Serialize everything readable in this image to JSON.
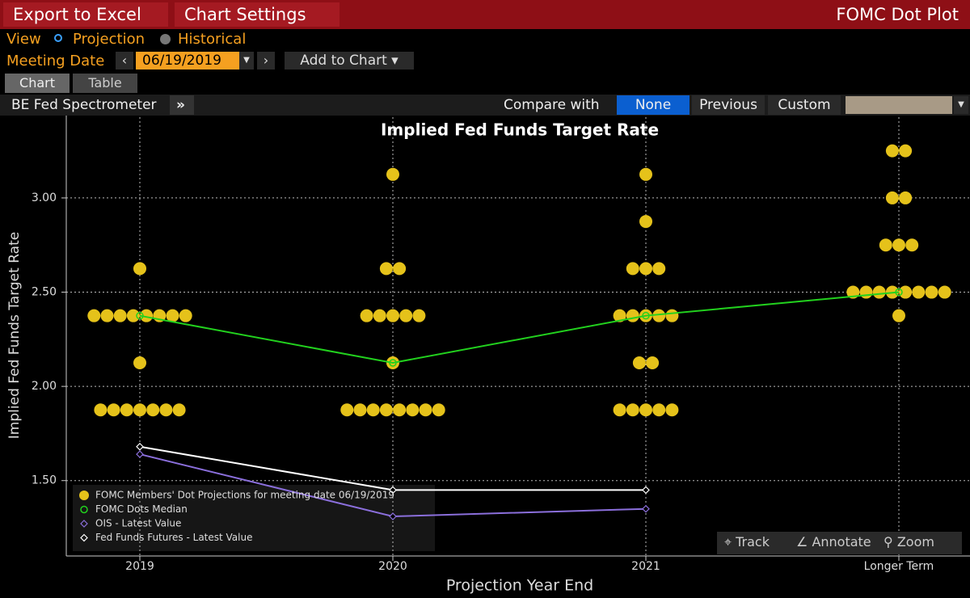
{
  "ui": {
    "toolbar": {
      "export": "Export to Excel",
      "settings": "Chart Settings",
      "title": "FOMC Dot Plot"
    },
    "view": {
      "label": "View",
      "options": [
        "Projection",
        "Historical"
      ]
    },
    "meeting_date": {
      "label": "Meeting Date",
      "value": "06/19/2019",
      "add": "Add to Chart"
    },
    "tabs": [
      "Chart",
      "Table"
    ],
    "subbar": {
      "source": "BE Fed Spectrometer",
      "expand": "»",
      "compare_label": "Compare with",
      "compare_options": [
        "None",
        "Previous",
        "Custom"
      ]
    },
    "chart_tools": [
      "Track",
      "Annotate",
      "Zoom"
    ]
  },
  "chart_data": {
    "type": "dot_plot",
    "title": "Implied Fed Funds Target Rate",
    "x_label": "Projection Year End",
    "y_label": "Implied Fed Funds Target Rate",
    "categories": [
      "2019",
      "2020",
      "2021",
      "Longer Term"
    ],
    "ylim": [
      1.1,
      3.45
    ],
    "yticks": [
      {
        "value": 1.5,
        "label": "1.50"
      },
      {
        "value": 2.0,
        "label": "2.00"
      },
      {
        "value": 2.5,
        "label": "2.50"
      },
      {
        "value": 3.0,
        "label": "3.00"
      }
    ],
    "grid": true,
    "legend": "lower left",
    "series": [
      {
        "name": "FOMC Members' Dot Projections for meeting date 06/19/2019",
        "style": "dots",
        "color": "#e5c21a",
        "values": [
          [
            2.625,
            2.375,
            2.375,
            2.375,
            2.375,
            2.375,
            2.375,
            2.375,
            2.375,
            2.125,
            1.875,
            1.875,
            1.875,
            1.875,
            1.875,
            1.875,
            1.875
          ],
          [
            3.125,
            2.625,
            2.625,
            2.375,
            2.375,
            2.375,
            2.375,
            2.375,
            2.125,
            1.875,
            1.875,
            1.875,
            1.875,
            1.875,
            1.875,
            1.875,
            1.875
          ],
          [
            3.125,
            2.875,
            2.625,
            2.625,
            2.625,
            2.375,
            2.375,
            2.375,
            2.375,
            2.375,
            2.125,
            2.125,
            1.875,
            1.875,
            1.875,
            1.875,
            1.875
          ],
          [
            3.25,
            3.25,
            3.0,
            3.0,
            2.75,
            2.75,
            2.75,
            2.5,
            2.5,
            2.5,
            2.5,
            2.5,
            2.5,
            2.5,
            2.5,
            2.375
          ]
        ]
      },
      {
        "name": "FOMC Dots Median",
        "style": "line",
        "marker": "circle",
        "color": "#22d11e",
        "values": [
          2.375,
          2.125,
          2.375,
          2.5
        ]
      },
      {
        "name": "OIS - Latest Value",
        "style": "line",
        "marker": "diamond",
        "color": "#8b6fdc",
        "values": [
          1.64,
          1.31,
          1.35,
          null
        ]
      },
      {
        "name": "Fed Funds Futures - Latest Value",
        "style": "line",
        "marker": "diamond",
        "color": "#ffffff",
        "values": [
          1.68,
          1.45,
          1.45,
          null
        ]
      }
    ]
  }
}
